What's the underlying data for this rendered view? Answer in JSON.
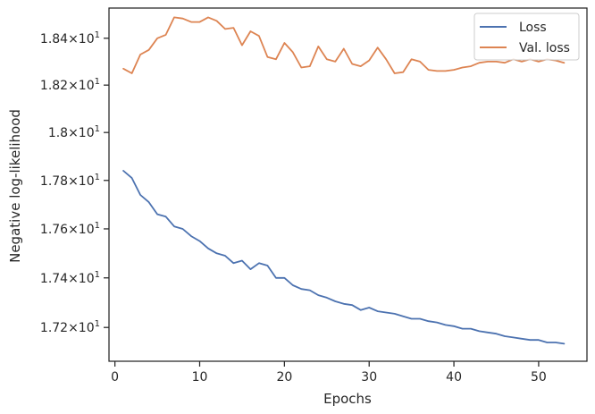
{
  "chart_data": {
    "type": "line",
    "title": "",
    "xlabel": "Epochs",
    "ylabel": "Negative log-likelihood",
    "xlim": [
      -0.7,
      55.7
    ],
    "ylim": [
      17.065,
      18.53
    ],
    "y_scale": "log",
    "grid": false,
    "legend_position": "top-right",
    "x_ticks": [
      {
        "value": 0,
        "label": "0"
      },
      {
        "value": 10,
        "label": "10"
      },
      {
        "value": 20,
        "label": "20"
      },
      {
        "value": 30,
        "label": "30"
      },
      {
        "value": 40,
        "label": "40"
      },
      {
        "value": 50,
        "label": "50"
      }
    ],
    "y_ticks": [
      {
        "value": 17.2,
        "mantissa": "1.72",
        "base": "10",
        "exponent": "1"
      },
      {
        "value": 17.4,
        "mantissa": "1.74",
        "base": "10",
        "exponent": "1"
      },
      {
        "value": 17.6,
        "mantissa": "1.76",
        "base": "10",
        "exponent": "1"
      },
      {
        "value": 17.8,
        "mantissa": "1.78",
        "base": "10",
        "exponent": "1"
      },
      {
        "value": 18.0,
        "mantissa": "1.8",
        "base": "10",
        "exponent": "1"
      },
      {
        "value": 18.2,
        "mantissa": "1.82",
        "base": "10",
        "exponent": "1"
      },
      {
        "value": 18.4,
        "mantissa": "1.84",
        "base": "10",
        "exponent": "1"
      }
    ],
    "x": [
      1,
      2,
      3,
      4,
      5,
      6,
      7,
      8,
      9,
      10,
      11,
      12,
      13,
      14,
      15,
      16,
      17,
      18,
      19,
      20,
      21,
      22,
      23,
      24,
      25,
      26,
      27,
      28,
      29,
      30,
      31,
      32,
      33,
      34,
      35,
      36,
      37,
      38,
      39,
      40,
      41,
      42,
      43,
      44,
      45,
      46,
      47,
      48,
      49,
      50,
      51,
      52,
      53
    ],
    "series": [
      {
        "name": "Loss",
        "color": "#4c72b0",
        "values": [
          17.84,
          17.81,
          17.74,
          17.71,
          17.66,
          17.65,
          17.61,
          17.6,
          17.57,
          17.55,
          17.52,
          17.5,
          17.49,
          17.46,
          17.47,
          17.435,
          17.46,
          17.45,
          17.4,
          17.4,
          17.37,
          17.355,
          17.35,
          17.33,
          17.32,
          17.305,
          17.295,
          17.29,
          17.27,
          17.28,
          17.265,
          17.26,
          17.255,
          17.245,
          17.235,
          17.235,
          17.225,
          17.22,
          17.21,
          17.205,
          17.195,
          17.195,
          17.185,
          17.18,
          17.175,
          17.165,
          17.16,
          17.155,
          17.15,
          17.15,
          17.14,
          17.14,
          17.135
        ]
      },
      {
        "name": "Val. loss",
        "color": "#dd8452",
        "values": [
          18.27,
          18.25,
          18.33,
          18.35,
          18.4,
          18.415,
          18.49,
          18.485,
          18.47,
          18.47,
          18.49,
          18.475,
          18.44,
          18.445,
          18.37,
          18.43,
          18.41,
          18.32,
          18.31,
          18.38,
          18.34,
          18.275,
          18.28,
          18.365,
          18.31,
          18.3,
          18.355,
          18.29,
          18.28,
          18.305,
          18.36,
          18.31,
          18.25,
          18.255,
          18.31,
          18.3,
          18.265,
          18.26,
          18.26,
          18.265,
          18.275,
          18.28,
          18.295,
          18.3,
          18.3,
          18.295,
          18.31,
          18.3,
          18.31,
          18.3,
          18.31,
          18.305,
          18.295
        ]
      }
    ]
  }
}
